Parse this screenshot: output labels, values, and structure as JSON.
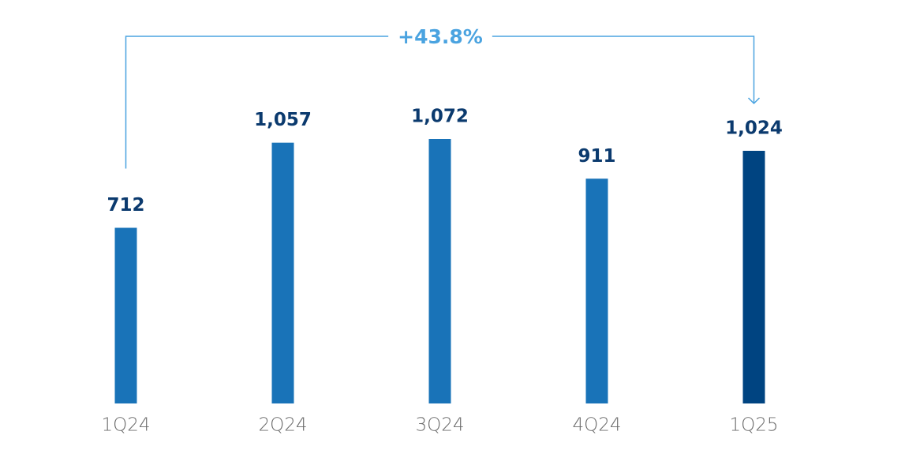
{
  "chart_data": {
    "type": "bar",
    "categories": [
      "1Q24",
      "2Q24",
      "3Q24",
      "4Q24",
      "1Q25"
    ],
    "values": [
      712,
      1057,
      1072,
      911,
      1024
    ],
    "value_labels": [
      "712",
      "1,057",
      "1,072",
      "911",
      "1,024"
    ],
    "colors": [
      "#1973b8",
      "#1973b8",
      "#1973b8",
      "#1973b8",
      "#004481"
    ],
    "ylim": [
      0,
      1600
    ],
    "annotation": "+43.8%",
    "annotation_color": "#4aa3e0"
  }
}
